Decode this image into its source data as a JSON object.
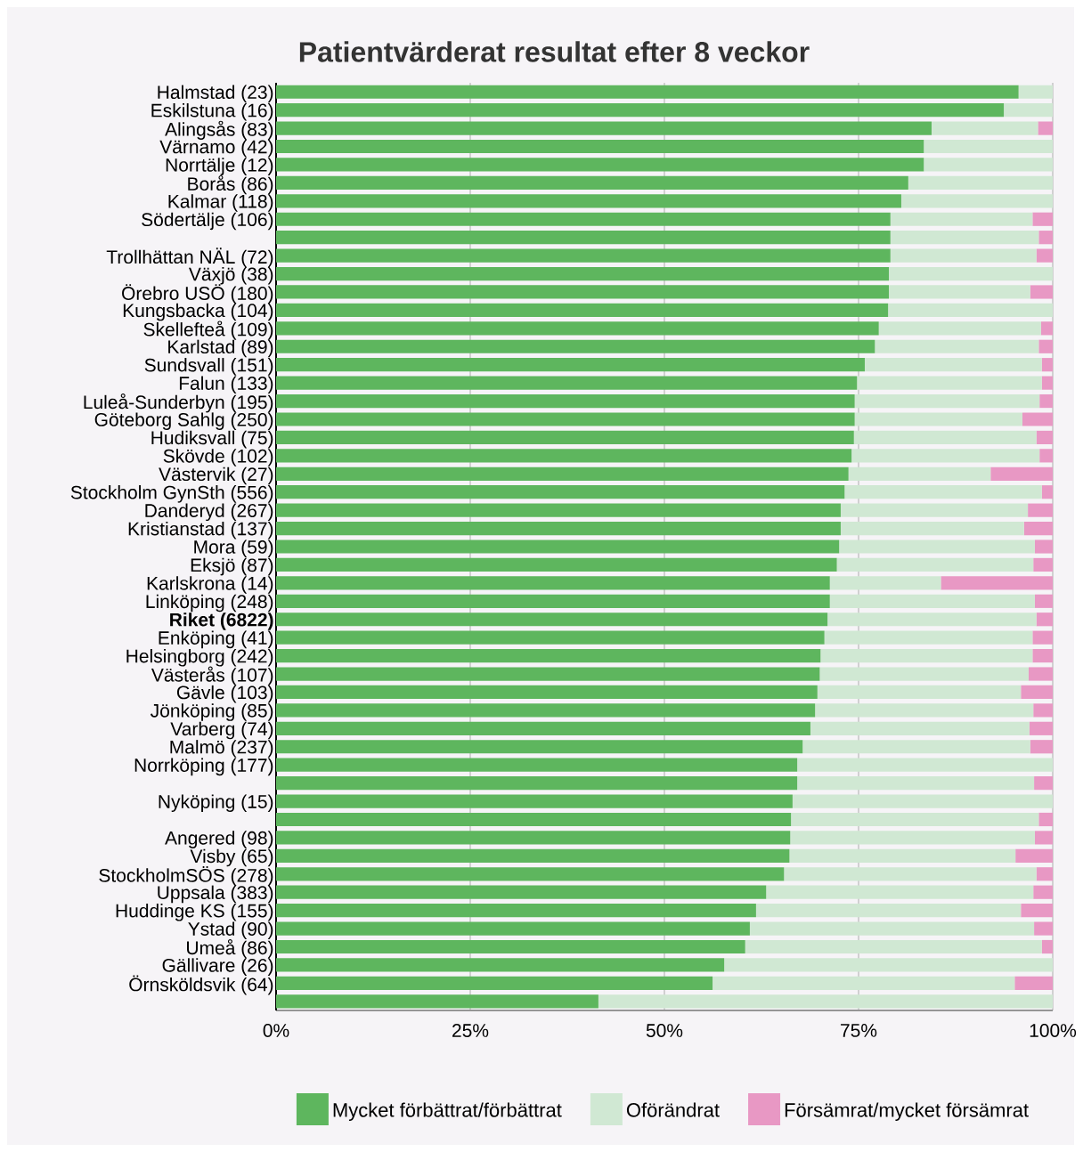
{
  "chart_data": {
    "type": "bar",
    "orientation": "horizontal",
    "stacked": true,
    "title": "Patientvärderat resultat efter 8 veckor",
    "categories": [
      "Halmstad (23)",
      "Eskilstuna (16)",
      "Alingsås (83)",
      "Värnamo (42)",
      "Norrtälje (12)",
      "Borås (86)",
      "Kalmar (118)",
      "Södertälje (106)",
      null,
      "Trollhättan NÄL (72)",
      "Växjö (38)",
      "Örebro USÖ (180)",
      "Kungsbacka (104)",
      "Skellefteå (109)",
      "Karlstad (89)",
      "Sundsvall (151)",
      "Falun (133)",
      "Luleå-Sunderbyn (195)",
      "Göteborg Sahlg (250)",
      "Hudiksvall (75)",
      "Skövde (102)",
      "Västervik (27)",
      "Stockholm GynSth (556)",
      "Danderyd (267)",
      "Kristianstad (137)",
      "Mora (59)",
      "Eksjö (87)",
      "Karlskrona (14)",
      "Linköping (248)",
      "**Riket (6822)**",
      "Enköping (41)",
      "Helsingborg (242)",
      "Västerås (107)",
      "Gävle (103)",
      "Jönköping (85)",
      "Varberg (74)",
      "Malmö (237)",
      "Norrköping (177)",
      null,
      "Nyköping (15)",
      null,
      "Angered (98)",
      "Visby (65)",
      "StockholmSÖS (278)",
      "Uppsala (383)",
      "Huddinge KS (155)",
      "Ystad (90)",
      "Umeå (86)",
      "Gällivare (26)",
      "Örnsköldsvik (64)",
      null
    ],
    "series": [
      {
        "name": "Mycket förbättrat/förbättrat",
        "color": "#5eb65e",
        "values": [
          95.6,
          93.7,
          84.4,
          83.4,
          83.4,
          81.4,
          80.5,
          79.1,
          79.1,
          79.1,
          78.9,
          78.9,
          78.8,
          77.6,
          77.1,
          75.8,
          74.8,
          74.5,
          74.5,
          74.4,
          74.1,
          73.7,
          73.2,
          72.7,
          72.7,
          72.5,
          72.2,
          71.3,
          71.3,
          71.0,
          70.6,
          70.1,
          70.0,
          69.7,
          69.4,
          68.8,
          67.8,
          67.1,
          67.1,
          66.5,
          66.3,
          66.2,
          66.1,
          65.4,
          63.1,
          61.8,
          61.0,
          60.4,
          57.7,
          56.2,
          41.5
        ]
      },
      {
        "name": "Oförändrat",
        "color": "#d0e8d3",
        "values": [
          4.4,
          6.3,
          13.7,
          16.6,
          16.6,
          18.6,
          19.5,
          18.3,
          19.1,
          18.8,
          21.1,
          18.2,
          21.2,
          20.9,
          21.1,
          22.8,
          23.8,
          23.8,
          21.6,
          23.5,
          24.2,
          18.3,
          25.4,
          24.1,
          23.6,
          25.2,
          25.3,
          14.3,
          26.4,
          26.9,
          26.8,
          27.3,
          26.9,
          26.2,
          28.1,
          28.2,
          29.3,
          32.9,
          30.5,
          33.5,
          31.9,
          31.5,
          29.1,
          32.5,
          34.4,
          34.1,
          36.6,
          38.2,
          42.3,
          38.9,
          58.5
        ]
      },
      {
        "name": "Försämrat/mycket försämrat",
        "color": "#e898c4",
        "values": [
          0,
          0,
          1.9,
          0,
          0,
          0,
          0,
          2.6,
          1.8,
          2.1,
          0,
          2.9,
          0,
          1.5,
          1.8,
          1.4,
          1.4,
          1.7,
          3.9,
          2.1,
          1.7,
          8.0,
          1.4,
          3.2,
          3.7,
          2.3,
          2.5,
          14.4,
          2.3,
          2.1,
          2.6,
          2.6,
          3.1,
          4.1,
          2.5,
          3.0,
          2.9,
          0,
          2.4,
          0,
          1.8,
          2.3,
          4.8,
          2.1,
          2.5,
          4.1,
          2.4,
          1.4,
          0,
          4.9,
          0
        ]
      }
    ],
    "xlim": [
      0,
      100
    ],
    "xticks": [
      {
        "value": 0,
        "label": "0%"
      },
      {
        "value": 25,
        "label": "25%"
      },
      {
        "value": 50,
        "label": "50%"
      },
      {
        "value": 75,
        "label": "75%"
      },
      {
        "value": 100,
        "label": "100%"
      }
    ],
    "grid": "x",
    "legend": "bottom"
  }
}
